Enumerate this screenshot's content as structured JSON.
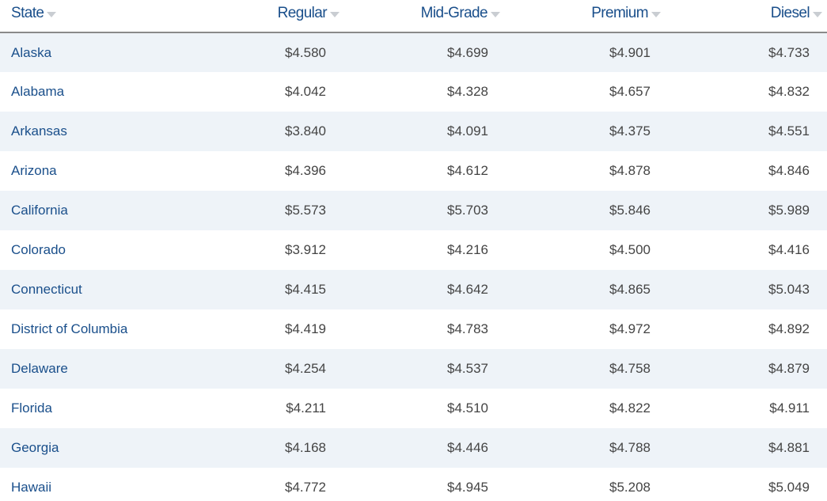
{
  "table": {
    "headers": {
      "state": "State",
      "regular": "Regular",
      "mid_grade": "Mid-Grade",
      "premium": "Premium",
      "diesel": "Diesel"
    },
    "rows": [
      {
        "state": "Alaska",
        "regular": "$4.580",
        "mid_grade": "$4.699",
        "premium": "$4.901",
        "diesel": "$4.733"
      },
      {
        "state": "Alabama",
        "regular": "$4.042",
        "mid_grade": "$4.328",
        "premium": "$4.657",
        "diesel": "$4.832"
      },
      {
        "state": "Arkansas",
        "regular": "$3.840",
        "mid_grade": "$4.091",
        "premium": "$4.375",
        "diesel": "$4.551"
      },
      {
        "state": "Arizona",
        "regular": "$4.396",
        "mid_grade": "$4.612",
        "premium": "$4.878",
        "diesel": "$4.846"
      },
      {
        "state": "California",
        "regular": "$5.573",
        "mid_grade": "$5.703",
        "premium": "$5.846",
        "diesel": "$5.989"
      },
      {
        "state": "Colorado",
        "regular": "$3.912",
        "mid_grade": "$4.216",
        "premium": "$4.500",
        "diesel": "$4.416"
      },
      {
        "state": "Connecticut",
        "regular": "$4.415",
        "mid_grade": "$4.642",
        "premium": "$4.865",
        "diesel": "$5.043"
      },
      {
        "state": "District of Columbia",
        "regular": "$4.419",
        "mid_grade": "$4.783",
        "premium": "$4.972",
        "diesel": "$4.892"
      },
      {
        "state": "Delaware",
        "regular": "$4.254",
        "mid_grade": "$4.537",
        "premium": "$4.758",
        "diesel": "$4.879"
      },
      {
        "state": "Florida",
        "regular": "$4.211",
        "mid_grade": "$4.510",
        "premium": "$4.822",
        "diesel": "$4.911"
      },
      {
        "state": "Georgia",
        "regular": "$4.168",
        "mid_grade": "$4.446",
        "premium": "$4.788",
        "diesel": "$4.881"
      },
      {
        "state": "Hawaii",
        "regular": "$4.772",
        "mid_grade": "$4.945",
        "premium": "$5.208",
        "diesel": "$5.049"
      }
    ]
  },
  "icons": {
    "sort": "sort-down-icon"
  },
  "colors": {
    "header_text": "#1a4f8b",
    "state_link": "#1a4f8b",
    "value_text": "#444444",
    "row_stripe": "#eef3f8",
    "sort_arrow": "#c9cdd2",
    "header_rule": "#8a8a8a"
  }
}
